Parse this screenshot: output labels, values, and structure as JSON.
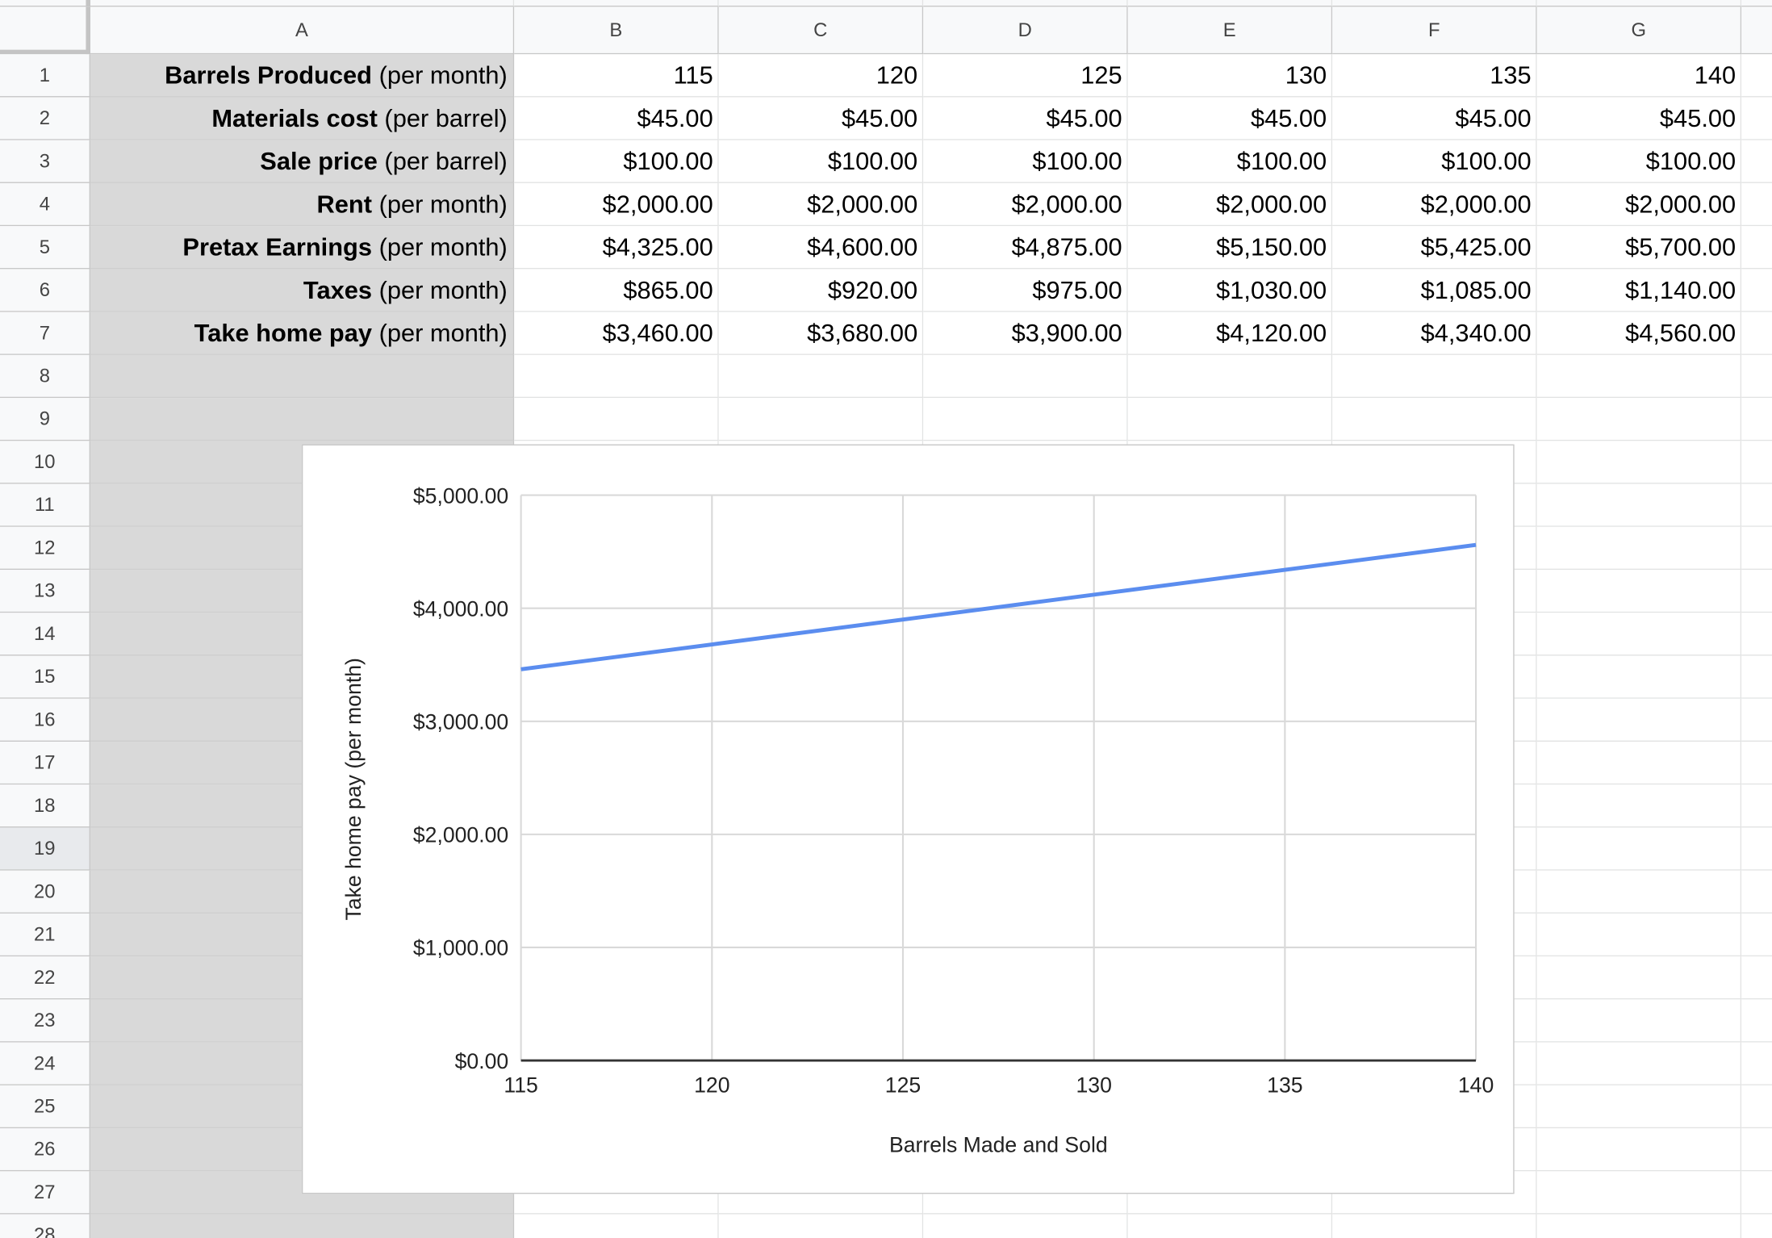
{
  "sheet": {
    "column_headers": [
      "A",
      "B",
      "C",
      "D",
      "E",
      "F",
      "G"
    ],
    "row_numbers": [
      "1",
      "2",
      "3",
      "4",
      "5",
      "6",
      "7",
      "8",
      "9",
      "10",
      "11",
      "12",
      "13",
      "14",
      "15",
      "16",
      "17",
      "18",
      "19",
      "20",
      "21",
      "22",
      "23",
      "24",
      "25",
      "26",
      "27",
      "28"
    ],
    "selected_row": "19",
    "rows": [
      {
        "label_bold": "Barrels Produced",
        "label_rest": " (per month)",
        "values": [
          "115",
          "120",
          "125",
          "130",
          "135",
          "140"
        ]
      },
      {
        "label_bold": "Materials cost",
        "label_rest": " (per barrel)",
        "values": [
          "$45.00",
          "$45.00",
          "$45.00",
          "$45.00",
          "$45.00",
          "$45.00"
        ]
      },
      {
        "label_bold": "Sale price",
        "label_rest": " (per barrel)",
        "values": [
          "$100.00",
          "$100.00",
          "$100.00",
          "$100.00",
          "$100.00",
          "$100.00"
        ]
      },
      {
        "label_bold": "Rent",
        "label_rest": " (per month)",
        "values": [
          "$2,000.00",
          "$2,000.00",
          "$2,000.00",
          "$2,000.00",
          "$2,000.00",
          "$2,000.00"
        ]
      },
      {
        "label_bold": "Pretax Earnings",
        "label_rest": " (per month)",
        "values": [
          "$4,325.00",
          "$4,600.00",
          "$4,875.00",
          "$5,150.00",
          "$5,425.00",
          "$5,700.00"
        ]
      },
      {
        "label_bold": "Taxes",
        "label_rest": " (per month)",
        "values": [
          "$865.00",
          "$920.00",
          "$975.00",
          "$1,030.00",
          "$1,085.00",
          "$1,140.00"
        ]
      },
      {
        "label_bold": "Take home pay",
        "label_rest": " (per month)",
        "values": [
          "$3,460.00",
          "$3,680.00",
          "$3,900.00",
          "$4,120.00",
          "$4,340.00",
          "$4,560.00"
        ]
      }
    ]
  },
  "colors": {
    "label_column_fill": "#d9d9d9",
    "series_line": "#5b8def",
    "gridline": "#d9d9d9"
  },
  "chart_data": {
    "type": "line",
    "x": [
      115,
      120,
      125,
      130,
      135,
      140
    ],
    "series": [
      {
        "values": [
          3460,
          3680,
          3900,
          4120,
          4340,
          4560
        ]
      }
    ],
    "xlabel": "Barrels Made and Sold",
    "ylabel": "Take home pay (per month)",
    "xlim": [
      115,
      140
    ],
    "ylim": [
      0,
      5000
    ],
    "x_ticks": [
      "115",
      "120",
      "125",
      "130",
      "135",
      "140"
    ],
    "y_ticks": [
      "$0.00",
      "$1,000.00",
      "$2,000.00",
      "$3,000.00",
      "$4,000.00",
      "$5,000.00"
    ],
    "grid": true,
    "legend": "none"
  }
}
